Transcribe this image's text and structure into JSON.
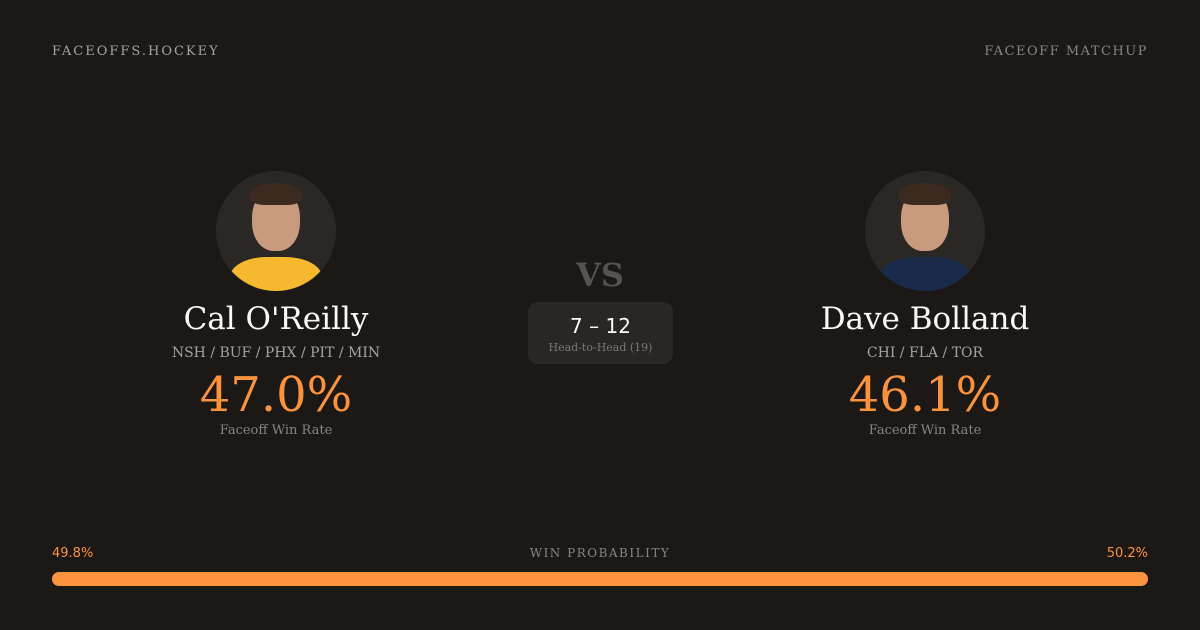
{
  "header": {
    "brand": "FACEOFFS.HOCKEY",
    "tag": "FACEOFF MATCHUP"
  },
  "players": [
    {
      "name": "Cal O'Reilly",
      "teams": "NSH / BUF / PHX / PIT / MIN",
      "rate": "47.0%",
      "rate_label": "Faceoff Win Rate",
      "jersey_color": "#f5b82e"
    },
    {
      "name": "Dave Bolland",
      "teams": "CHI / FLA / TOR",
      "rate": "46.1%",
      "rate_label": "Faceoff Win Rate",
      "jersey_color": "#1a2a4a"
    }
  ],
  "vs": "VS",
  "h2h": {
    "score": "7 – 12",
    "label": "Head-to-Head (19)"
  },
  "probability": {
    "title": "WIN PROBABILITY",
    "left": "49.8%",
    "right": "50.2%",
    "left_value": 49.8,
    "right_value": 50.2,
    "color": "#fb923c"
  }
}
